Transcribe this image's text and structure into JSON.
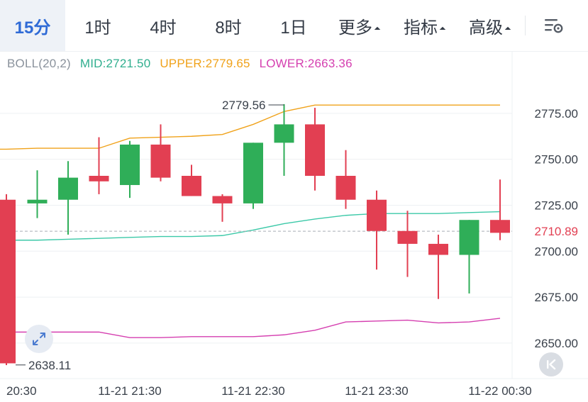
{
  "tabs": [
    {
      "label": "15分",
      "active": true,
      "caret": false
    },
    {
      "label": "1时",
      "active": false,
      "caret": false
    },
    {
      "label": "4时",
      "active": false,
      "caret": false
    },
    {
      "label": "8时",
      "active": false,
      "caret": false
    },
    {
      "label": "1日",
      "active": false,
      "caret": false
    },
    {
      "label": "更多",
      "active": false,
      "caret": true
    },
    {
      "label": "指标",
      "active": false,
      "caret": true
    },
    {
      "label": "高级",
      "active": false,
      "caret": true
    }
  ],
  "icons": {
    "settings": "chart-settings-icon",
    "expand": "expand-arrows-icon",
    "latest": "jump-to-latest-icon"
  },
  "legend": {
    "name": "BOLL(20,2)",
    "mid": "MID:2721.50",
    "upper": "UPPER:2779.65",
    "lower": "LOWER:2663.36"
  },
  "colors": {
    "up": "#2fae58",
    "down": "#e23f52",
    "mid": "#3cc9a8",
    "upper": "#f0a21a",
    "lower": "#d53fb0",
    "accent": "#2f6bd6",
    "price_label": "#e23f52"
  },
  "chart_data": {
    "type": "candlestick",
    "indicator": "BOLL(20,2)",
    "ylim": [
      2633,
      2795
    ],
    "y_ticks": [
      2775.0,
      2750.0,
      2725.0,
      2700.0,
      2675.0,
      2650.0
    ],
    "y_tick_labels": [
      "2775.00",
      "2750.00",
      "2725.00",
      "2700.00",
      "2675.00",
      "2650.00"
    ],
    "x_tick_labels": [
      "20:30",
      "11-21 21:30",
      "11-21 22:30",
      "11-21 23:30",
      "11-22 00:30"
    ],
    "x_tick_index": [
      0,
      4,
      8,
      12,
      16
    ],
    "current_price": 2710.89,
    "current_price_label": "2710.89",
    "high_marker": {
      "index": 9,
      "value": 2779.56,
      "label": "2779.56"
    },
    "low_marker": {
      "index": 0,
      "value": 2638.11,
      "label": "2638.11"
    },
    "candles": [
      {
        "o": 2728.0,
        "h": 2731.0,
        "l": 2638.0,
        "c": 2639.0
      },
      {
        "o": 2726.0,
        "h": 2744.0,
        "l": 2718.0,
        "c": 2728.0
      },
      {
        "o": 2728.0,
        "h": 2749.0,
        "l": 2709.0,
        "c": 2740.0
      },
      {
        "o": 2741.0,
        "h": 2762.0,
        "l": 2731.0,
        "c": 2738.0
      },
      {
        "o": 2736.0,
        "h": 2760.0,
        "l": 2729.0,
        "c": 2758.0
      },
      {
        "o": 2758.0,
        "h": 2769.0,
        "l": 2738.0,
        "c": 2740.0
      },
      {
        "o": 2741.0,
        "h": 2747.0,
        "l": 2730.0,
        "c": 2730.0
      },
      {
        "o": 2730.0,
        "h": 2731.0,
        "l": 2716.0,
        "c": 2726.0
      },
      {
        "o": 2726.0,
        "h": 2759.0,
        "l": 2723.0,
        "c": 2759.0
      },
      {
        "o": 2759.0,
        "h": 2780.0,
        "l": 2741.0,
        "c": 2769.0
      },
      {
        "o": 2769.0,
        "h": 2778.0,
        "l": 2733.0,
        "c": 2741.0
      },
      {
        "o": 2741.0,
        "h": 2755.0,
        "l": 2723.0,
        "c": 2728.0
      },
      {
        "o": 2728.0,
        "h": 2733.0,
        "l": 2690.0,
        "c": 2711.0
      },
      {
        "o": 2711.0,
        "h": 2722.0,
        "l": 2686.0,
        "c": 2704.0
      },
      {
        "o": 2704.0,
        "h": 2709.0,
        "l": 2674.0,
        "c": 2698.0
      },
      {
        "o": 2698.0,
        "h": 2717.0,
        "l": 2677.0,
        "c": 2717.0
      },
      {
        "o": 2717.0,
        "h": 2739.0,
        "l": 2706.0,
        "c": 2710.0
      }
    ],
    "series": [
      {
        "name": "UPPER",
        "values": [
          2755.5,
          2756,
          2756,
          2756,
          2761.5,
          2762,
          2762.5,
          2763.5,
          2769,
          2776,
          2779.5,
          2779.5,
          2779.5,
          2779.5,
          2779.5,
          2779.5,
          2779.5
        ]
      },
      {
        "name": "MID",
        "values": [
          2706,
          2706,
          2706.5,
          2707,
          2707.5,
          2708,
          2708,
          2708.5,
          2711.5,
          2715,
          2717.5,
          2719.5,
          2720.5,
          2720.5,
          2720.5,
          2721,
          2721.5
        ]
      },
      {
        "name": "LOWER",
        "values": [
          2656,
          2656,
          2656,
          2656,
          2653,
          2653,
          2653.5,
          2653.5,
          2653.5,
          2654.5,
          2657,
          2661.5,
          2662,
          2662.5,
          2661,
          2661.5,
          2663.5
        ]
      }
    ]
  }
}
